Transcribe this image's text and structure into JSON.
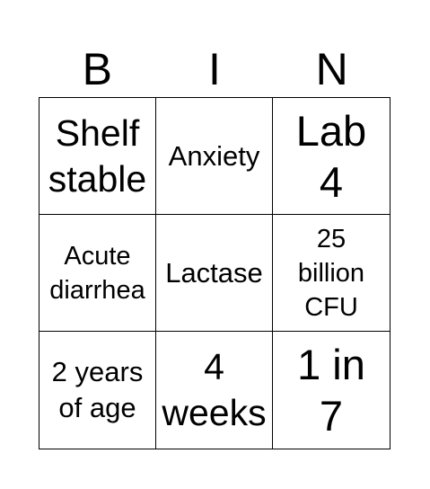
{
  "header": {
    "letters": [
      "B",
      "I",
      "N"
    ]
  },
  "board": {
    "cells": [
      [
        "Shelf\nstable",
        "Anxiety",
        "Lab\n4"
      ],
      [
        "Acute\ndiarrhea",
        "Lactase",
        "25\nbillion\nCFU"
      ],
      [
        "2 years\nof age",
        "4\nweeks",
        "1 in\n7"
      ]
    ]
  }
}
